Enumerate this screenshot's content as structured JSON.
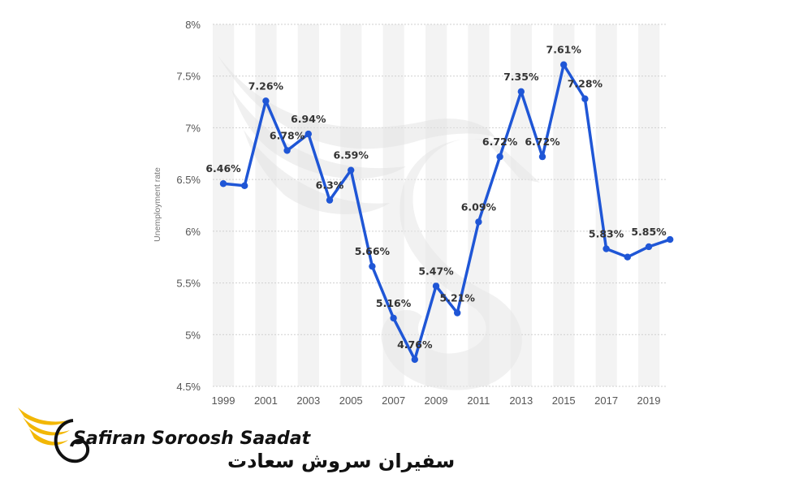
{
  "chart_data": {
    "type": "line",
    "ylabel": "Unemployment rate",
    "xlabel": "",
    "ylim": [
      4.5,
      8
    ],
    "yticks": [
      "4.5%",
      "5%",
      "5.5%",
      "6%",
      "6.5%",
      "7%",
      "7.5%",
      "8%"
    ],
    "xtick_labels": [
      "1999",
      "2001",
      "2003",
      "2005",
      "2007",
      "2009",
      "2011",
      "2013",
      "2015",
      "2017",
      "2019"
    ],
    "grid": true,
    "x": [
      1999,
      2000,
      2001,
      2002,
      2003,
      2004,
      2005,
      2006,
      2007,
      2008,
      2009,
      2010,
      2011,
      2012,
      2013,
      2014,
      2015,
      2016,
      2017,
      2018,
      2019,
      2020
    ],
    "series": [
      {
        "values": [
          6.46,
          6.44,
          7.26,
          6.78,
          6.94,
          6.3,
          6.59,
          5.66,
          5.16,
          4.76,
          5.47,
          5.21,
          6.09,
          6.72,
          7.35,
          6.72,
          7.61,
          7.28,
          5.83,
          5.75,
          5.85,
          5.92
        ],
        "color": "#1f56d6"
      }
    ],
    "data_labels": [
      {
        "year": 1999,
        "text": "6.46%"
      },
      {
        "year": 2001,
        "text": "7.26%"
      },
      {
        "year": 2002,
        "text": "6.78%"
      },
      {
        "year": 2003,
        "text": "6.94%"
      },
      {
        "year": 2004,
        "text": "6.3%"
      },
      {
        "year": 2005,
        "text": "6.59%"
      },
      {
        "year": 2006,
        "text": "5.66%"
      },
      {
        "year": 2007,
        "text": "5.16%"
      },
      {
        "year": 2008,
        "text": "4.76%"
      },
      {
        "year": 2009,
        "text": "5.47%"
      },
      {
        "year": 2010,
        "text": "5.21%"
      },
      {
        "year": 2011,
        "text": "6.09%"
      },
      {
        "year": 2012,
        "text": "6.72%"
      },
      {
        "year": 2013,
        "text": "7.35%"
      },
      {
        "year": 2014,
        "text": "6.72%"
      },
      {
        "year": 2015,
        "text": "7.61%"
      },
      {
        "year": 2016,
        "text": "7.28%"
      },
      {
        "year": 2017,
        "text": "5.83%"
      },
      {
        "year": 2019,
        "text": "5.85%"
      }
    ]
  },
  "branding": {
    "name_en": "Safiran Soroosh Saadat",
    "name_fa": "سفیران سروش سعادت",
    "logo_color": "#f2b705"
  }
}
